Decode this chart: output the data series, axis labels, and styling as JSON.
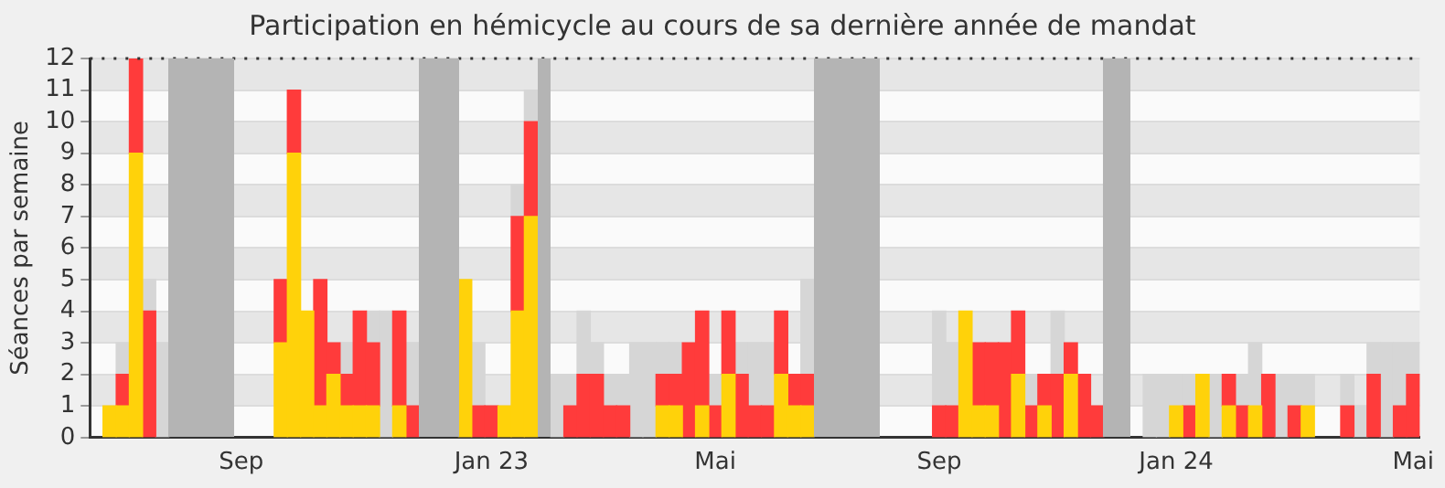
{
  "chart_data": {
    "type": "bar",
    "title": "Participation en hémicycle au cours de sa dernière année de mandat",
    "ylabel": "Séances par semaine",
    "categories": [
      null,
      null,
      null,
      null,
      null,
      null,
      null,
      null,
      null,
      null,
      null,
      "Sep",
      null,
      null,
      null,
      null,
      null,
      null,
      null,
      null,
      null,
      null,
      null,
      null,
      null,
      null,
      null,
      null,
      null,
      null,
      "Jan 23",
      null,
      null,
      null,
      null,
      null,
      null,
      null,
      null,
      null,
      null,
      null,
      null,
      null,
      null,
      null,
      null,
      "Mai",
      null,
      null,
      null,
      null,
      null,
      null,
      null,
      null,
      null,
      null,
      null,
      null,
      null,
      null,
      null,
      null,
      "Sep",
      null,
      null,
      null,
      null,
      null,
      null,
      null,
      null,
      null,
      null,
      null,
      null,
      null,
      null,
      null,
      null,
      null,
      "Jan 24",
      null,
      null,
      null,
      null,
      null,
      null,
      null,
      null,
      null,
      null,
      null,
      null,
      null,
      null,
      null,
      null,
      null,
      "Mai"
    ],
    "stacked": true,
    "grid": "y",
    "ylim": [
      0,
      12
    ],
    "yticks": [
      0,
      1,
      2,
      3,
      4,
      5,
      6,
      7,
      8,
      9,
      10,
      11,
      12
    ],
    "series": [
      {
        "color": "#ffd20a",
        "values": [
          null,
          1,
          1,
          9,
          null,
          null,
          null,
          null,
          null,
          null,
          null,
          null,
          null,
          null,
          3,
          9,
          4,
          1,
          2,
          1,
          1,
          1,
          null,
          1,
          null,
          null,
          null,
          null,
          5,
          null,
          null,
          1,
          4,
          7,
          null,
          null,
          null,
          null,
          null,
          null,
          null,
          null,
          null,
          1,
          1,
          null,
          1,
          null,
          2,
          null,
          null,
          null,
          2,
          1,
          1,
          null,
          null,
          null,
          null,
          null,
          null,
          null,
          null,
          null,
          null,
          null,
          4,
          1,
          1,
          null,
          2,
          null,
          1,
          null,
          2,
          null,
          null,
          null,
          null,
          null,
          null,
          null,
          1,
          null,
          2,
          null,
          1,
          null,
          1,
          null,
          null,
          null,
          1,
          null,
          null,
          null,
          null,
          null,
          null,
          null,
          null
        ]
      },
      {
        "color": "#ff3b3b",
        "values": [
          null,
          null,
          1,
          3,
          4,
          null,
          null,
          null,
          null,
          null,
          null,
          null,
          null,
          null,
          2,
          2,
          null,
          4,
          1,
          1,
          3,
          2,
          null,
          3,
          1,
          null,
          null,
          null,
          null,
          1,
          1,
          null,
          3,
          3,
          null,
          null,
          1,
          2,
          2,
          1,
          1,
          null,
          null,
          1,
          1,
          3,
          3,
          1,
          2,
          2,
          1,
          1,
          2,
          1,
          1,
          null,
          null,
          null,
          null,
          null,
          null,
          null,
          null,
          null,
          1,
          1,
          null,
          2,
          2,
          3,
          2,
          1,
          1,
          2,
          1,
          2,
          1,
          null,
          null,
          null,
          null,
          null,
          null,
          1,
          null,
          null,
          1,
          1,
          null,
          2,
          null,
          1,
          null,
          null,
          null,
          1,
          null,
          2,
          null,
          1,
          2
        ]
      },
      {
        "color": "#d6d6d6",
        "values": [
          null,
          null,
          1,
          null,
          1,
          3,
          null,
          null,
          null,
          null,
          null,
          null,
          null,
          null,
          null,
          null,
          null,
          null,
          null,
          1,
          null,
          1,
          4,
          null,
          2,
          null,
          null,
          null,
          null,
          2,
          null,
          null,
          1,
          1,
          null,
          2,
          1,
          2,
          1,
          1,
          1,
          3,
          3,
          1,
          1,
          null,
          null,
          1,
          null,
          1,
          2,
          2,
          null,
          null,
          3,
          null,
          null,
          null,
          null,
          null,
          null,
          null,
          null,
          null,
          3,
          2,
          null,
          null,
          null,
          null,
          null,
          1,
          null,
          2,
          null,
          null,
          null,
          null,
          null,
          null,
          2,
          2,
          1,
          1,
          null,
          2,
          null,
          1,
          2,
          null,
          2,
          1,
          1,
          null,
          null,
          1,
          1,
          1,
          3,
          2,
          1
        ]
      }
    ]
  }
}
